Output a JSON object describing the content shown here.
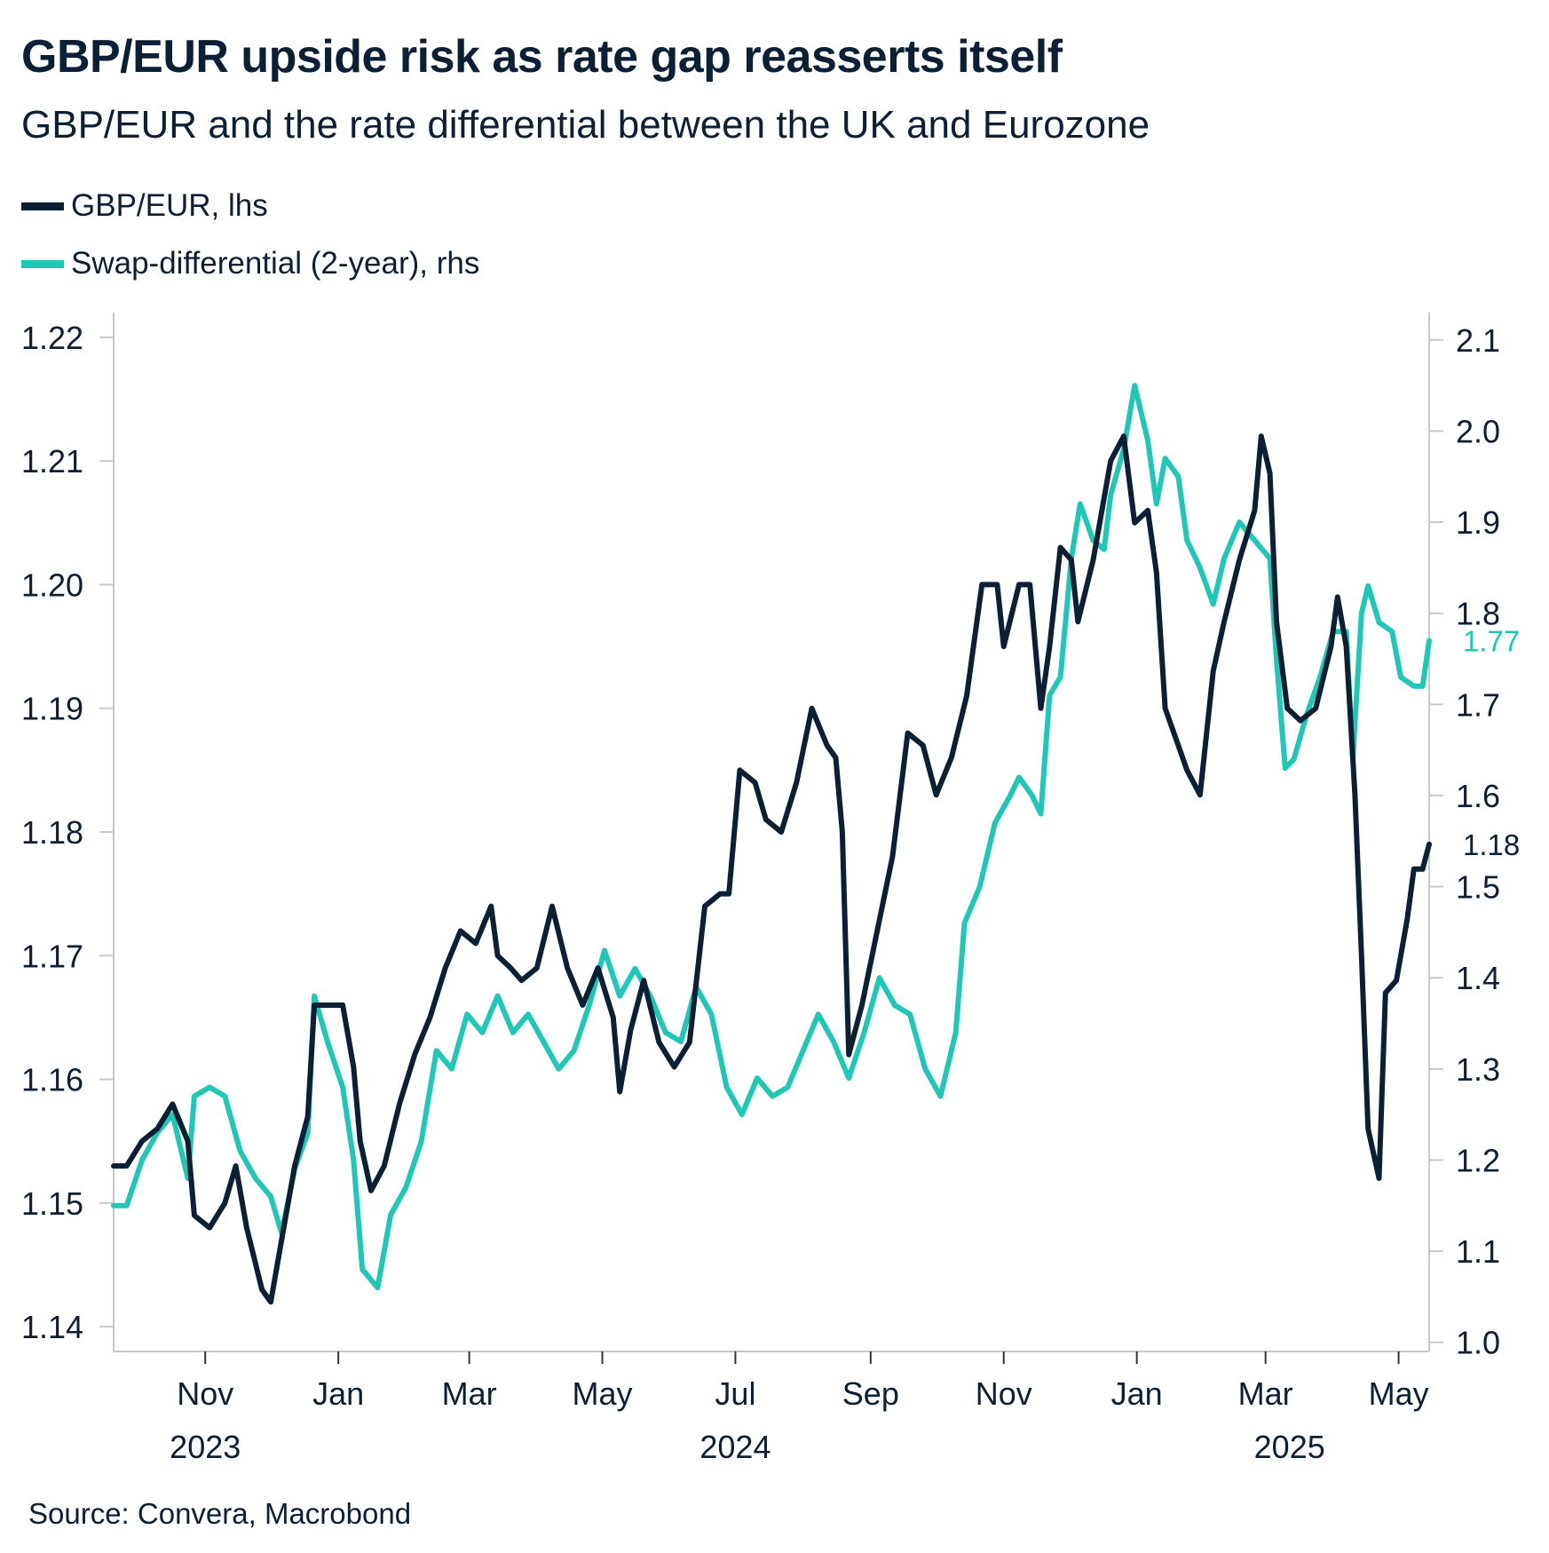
{
  "chart_data": {
    "type": "line",
    "title": "GBP/EUR upside risk as rate gap reasserts itself",
    "subtitle": "GBP/EUR and the rate differential between the UK and Eurozone",
    "source": "Source: Convera, Macrobond",
    "x_range": [
      "2023-09-20",
      "2025-05-15"
    ],
    "x_ticks": [
      {
        "date": "2023-11-01",
        "label": "Nov"
      },
      {
        "date": "2024-01-01",
        "label": "Jan"
      },
      {
        "date": "2024-03-01",
        "label": "Mar"
      },
      {
        "date": "2024-05-01",
        "label": "May"
      },
      {
        "date": "2024-07-01",
        "label": "Jul"
      },
      {
        "date": "2024-09-01",
        "label": "Sep"
      },
      {
        "date": "2024-11-01",
        "label": "Nov"
      },
      {
        "date": "2025-01-01",
        "label": "Jan"
      },
      {
        "date": "2025-03-01",
        "label": "Mar"
      },
      {
        "date": "2025-05-01",
        "label": "May"
      }
    ],
    "year_labels": [
      {
        "date": "2023-11-01",
        "label": "2023"
      },
      {
        "date": "2024-07-01",
        "label": "2024"
      },
      {
        "date": "2025-03-12",
        "label": "2025"
      }
    ],
    "y_left": {
      "min": 1.138,
      "max": 1.222,
      "ticks": [
        "1.14",
        "1.15",
        "1.16",
        "1.17",
        "1.18",
        "1.19",
        "1.20",
        "1.21",
        "1.22"
      ]
    },
    "y_right": {
      "min": 0.99,
      "max": 2.13,
      "ticks": [
        "1.0",
        "1.1",
        "1.2",
        "1.3",
        "1.4",
        "1.5",
        "1.6",
        "1.7",
        "1.8",
        "1.9",
        "2.0",
        "2.1"
      ]
    },
    "series": [
      {
        "name": "GBP/EUR, lhs",
        "axis": "left",
        "color": "#0d1f33",
        "end_label": "1.18",
        "points": [
          [
            "2023-09-20",
            1.153
          ],
          [
            "2023-09-26",
            1.153
          ],
          [
            "2023-10-03",
            1.155
          ],
          [
            "2023-10-10",
            1.156
          ],
          [
            "2023-10-17",
            1.158
          ],
          [
            "2023-10-24",
            1.155
          ],
          [
            "2023-10-27",
            1.149
          ],
          [
            "2023-11-03",
            1.148
          ],
          [
            "2023-11-10",
            1.15
          ],
          [
            "2023-11-15",
            1.153
          ],
          [
            "2023-11-20",
            1.148
          ],
          [
            "2023-11-27",
            1.143
          ],
          [
            "2023-12-01",
            1.142
          ],
          [
            "2023-12-06",
            1.147
          ],
          [
            "2023-12-12",
            1.153
          ],
          [
            "2023-12-18",
            1.157
          ],
          [
            "2023-12-21",
            1.166
          ],
          [
            "2023-12-27",
            1.166
          ],
          [
            "2024-01-03",
            1.166
          ],
          [
            "2024-01-08",
            1.161
          ],
          [
            "2024-01-11",
            1.155
          ],
          [
            "2024-01-16",
            1.151
          ],
          [
            "2024-01-22",
            1.153
          ],
          [
            "2024-01-29",
            1.158
          ],
          [
            "2024-02-05",
            1.162
          ],
          [
            "2024-02-12",
            1.165
          ],
          [
            "2024-02-19",
            1.169
          ],
          [
            "2024-02-26",
            1.172
          ],
          [
            "2024-03-04",
            1.171
          ],
          [
            "2024-03-11",
            1.174
          ],
          [
            "2024-03-14",
            1.17
          ],
          [
            "2024-03-20",
            1.169
          ],
          [
            "2024-03-25",
            1.168
          ],
          [
            "2024-04-01",
            1.169
          ],
          [
            "2024-04-08",
            1.174
          ],
          [
            "2024-04-15",
            1.169
          ],
          [
            "2024-04-22",
            1.166
          ],
          [
            "2024-04-29",
            1.169
          ],
          [
            "2024-05-06",
            1.165
          ],
          [
            "2024-05-09",
            1.159
          ],
          [
            "2024-05-14",
            1.164
          ],
          [
            "2024-05-20",
            1.168
          ],
          [
            "2024-05-27",
            1.163
          ],
          [
            "2024-06-03",
            1.161
          ],
          [
            "2024-06-10",
            1.163
          ],
          [
            "2024-06-17",
            1.174
          ],
          [
            "2024-06-24",
            1.175
          ],
          [
            "2024-06-28",
            1.175
          ],
          [
            "2024-07-03",
            1.185
          ],
          [
            "2024-07-10",
            1.184
          ],
          [
            "2024-07-15",
            1.181
          ],
          [
            "2024-07-22",
            1.18
          ],
          [
            "2024-07-29",
            1.184
          ],
          [
            "2024-08-05",
            1.19
          ],
          [
            "2024-08-12",
            1.187
          ],
          [
            "2024-08-16",
            1.186
          ],
          [
            "2024-08-19",
            1.18
          ],
          [
            "2024-08-22",
            1.162
          ],
          [
            "2024-08-28",
            1.166
          ],
          [
            "2024-09-04",
            1.172
          ],
          [
            "2024-09-11",
            1.178
          ],
          [
            "2024-09-18",
            1.188
          ],
          [
            "2024-09-25",
            1.187
          ],
          [
            "2024-10-01",
            1.183
          ],
          [
            "2024-10-08",
            1.186
          ],
          [
            "2024-10-15",
            1.191
          ],
          [
            "2024-10-22",
            1.2
          ],
          [
            "2024-10-29",
            1.2
          ],
          [
            "2024-11-01",
            1.195
          ],
          [
            "2024-11-08",
            1.2
          ],
          [
            "2024-11-13",
            1.2
          ],
          [
            "2024-11-18",
            1.19
          ],
          [
            "2024-11-22",
            1.195
          ],
          [
            "2024-11-27",
            1.203
          ],
          [
            "2024-12-02",
            1.202
          ],
          [
            "2024-12-05",
            1.197
          ],
          [
            "2024-12-12",
            1.202
          ],
          [
            "2024-12-17",
            1.207
          ],
          [
            "2024-12-20",
            1.21
          ],
          [
            "2024-12-26",
            1.212
          ],
          [
            "2024-12-31",
            1.205
          ],
          [
            "2025-01-06",
            1.206
          ],
          [
            "2025-01-10",
            1.201
          ],
          [
            "2025-01-14",
            1.19
          ],
          [
            "2025-01-20",
            1.187
          ],
          [
            "2025-01-24",
            1.185
          ],
          [
            "2025-01-30",
            1.183
          ],
          [
            "2025-02-05",
            1.193
          ],
          [
            "2025-02-10",
            1.197
          ],
          [
            "2025-02-17",
            1.202
          ],
          [
            "2025-02-24",
            1.206
          ],
          [
            "2025-02-27",
            1.212
          ],
          [
            "2025-03-03",
            1.209
          ],
          [
            "2025-03-06",
            1.197
          ],
          [
            "2025-03-11",
            1.19
          ],
          [
            "2025-03-17",
            1.189
          ],
          [
            "2025-03-24",
            1.19
          ],
          [
            "2025-03-31",
            1.195
          ],
          [
            "2025-04-03",
            1.199
          ],
          [
            "2025-04-07",
            1.195
          ],
          [
            "2025-04-11",
            1.183
          ],
          [
            "2025-04-14",
            1.17
          ],
          [
            "2025-04-17",
            1.156
          ],
          [
            "2025-04-22",
            1.152
          ],
          [
            "2025-04-25",
            1.167
          ],
          [
            "2025-04-30",
            1.168
          ],
          [
            "2025-05-05",
            1.173
          ],
          [
            "2025-05-08",
            1.177
          ],
          [
            "2025-05-12",
            1.177
          ],
          [
            "2025-05-15",
            1.179
          ]
        ]
      },
      {
        "name": "Swap-differential (2-year), rhs",
        "axis": "right",
        "color": "#1ec8b4",
        "end_label": "1.77",
        "points": [
          [
            "2023-09-20",
            1.15
          ],
          [
            "2023-09-26",
            1.15
          ],
          [
            "2023-10-03",
            1.2
          ],
          [
            "2023-10-10",
            1.23
          ],
          [
            "2023-10-17",
            1.25
          ],
          [
            "2023-10-24",
            1.18
          ],
          [
            "2023-10-27",
            1.27
          ],
          [
            "2023-11-03",
            1.28
          ],
          [
            "2023-11-10",
            1.27
          ],
          [
            "2023-11-17",
            1.21
          ],
          [
            "2023-11-24",
            1.18
          ],
          [
            "2023-12-01",
            1.16
          ],
          [
            "2023-12-06",
            1.12
          ],
          [
            "2023-12-12",
            1.19
          ],
          [
            "2023-12-18",
            1.23
          ],
          [
            "2023-12-21",
            1.38
          ],
          [
            "2023-12-27",
            1.33
          ],
          [
            "2024-01-03",
            1.28
          ],
          [
            "2024-01-08",
            1.2
          ],
          [
            "2024-01-12",
            1.08
          ],
          [
            "2024-01-19",
            1.06
          ],
          [
            "2024-01-25",
            1.14
          ],
          [
            "2024-02-01",
            1.17
          ],
          [
            "2024-02-08",
            1.22
          ],
          [
            "2024-02-15",
            1.32
          ],
          [
            "2024-02-22",
            1.3
          ],
          [
            "2024-02-29",
            1.36
          ],
          [
            "2024-03-07",
            1.34
          ],
          [
            "2024-03-14",
            1.38
          ],
          [
            "2024-03-21",
            1.34
          ],
          [
            "2024-03-28",
            1.36
          ],
          [
            "2024-04-04",
            1.33
          ],
          [
            "2024-04-11",
            1.3
          ],
          [
            "2024-04-18",
            1.32
          ],
          [
            "2024-04-25",
            1.37
          ],
          [
            "2024-05-02",
            1.43
          ],
          [
            "2024-05-09",
            1.38
          ],
          [
            "2024-05-16",
            1.41
          ],
          [
            "2024-05-23",
            1.38
          ],
          [
            "2024-05-30",
            1.34
          ],
          [
            "2024-06-06",
            1.33
          ],
          [
            "2024-06-13",
            1.39
          ],
          [
            "2024-06-20",
            1.36
          ],
          [
            "2024-06-27",
            1.28
          ],
          [
            "2024-07-04",
            1.25
          ],
          [
            "2024-07-11",
            1.29
          ],
          [
            "2024-07-18",
            1.27
          ],
          [
            "2024-07-25",
            1.28
          ],
          [
            "2024-08-01",
            1.32
          ],
          [
            "2024-08-08",
            1.36
          ],
          [
            "2024-08-15",
            1.33
          ],
          [
            "2024-08-22",
            1.29
          ],
          [
            "2024-08-29",
            1.34
          ],
          [
            "2024-09-05",
            1.4
          ],
          [
            "2024-09-12",
            1.37
          ],
          [
            "2024-09-19",
            1.36
          ],
          [
            "2024-09-26",
            1.3
          ],
          [
            "2024-10-03",
            1.27
          ],
          [
            "2024-10-10",
            1.34
          ],
          [
            "2024-10-14",
            1.46
          ],
          [
            "2024-10-21",
            1.5
          ],
          [
            "2024-10-28",
            1.57
          ],
          [
            "2024-11-04",
            1.6
          ],
          [
            "2024-11-08",
            1.62
          ],
          [
            "2024-11-14",
            1.6
          ],
          [
            "2024-11-18",
            1.58
          ],
          [
            "2024-11-22",
            1.71
          ],
          [
            "2024-11-27",
            1.73
          ],
          [
            "2024-12-02",
            1.86
          ],
          [
            "2024-12-06",
            1.92
          ],
          [
            "2024-12-12",
            1.88
          ],
          [
            "2024-12-17",
            1.87
          ],
          [
            "2024-12-20",
            1.93
          ],
          [
            "2024-12-26",
            1.98
          ],
          [
            "2024-12-31",
            2.05
          ],
          [
            "2025-01-06",
            1.99
          ],
          [
            "2025-01-10",
            1.92
          ],
          [
            "2025-01-14",
            1.97
          ],
          [
            "2025-01-20",
            1.95
          ],
          [
            "2025-01-24",
            1.88
          ],
          [
            "2025-01-30",
            1.85
          ],
          [
            "2025-02-05",
            1.81
          ],
          [
            "2025-02-10",
            1.86
          ],
          [
            "2025-02-17",
            1.9
          ],
          [
            "2025-02-24",
            1.88
          ],
          [
            "2025-03-03",
            1.86
          ],
          [
            "2025-03-06",
            1.75
          ],
          [
            "2025-03-10",
            1.63
          ],
          [
            "2025-03-14",
            1.64
          ],
          [
            "2025-03-20",
            1.69
          ],
          [
            "2025-03-26",
            1.73
          ],
          [
            "2025-04-01",
            1.78
          ],
          [
            "2025-04-07",
            1.78
          ],
          [
            "2025-04-10",
            1.64
          ],
          [
            "2025-04-14",
            1.8
          ],
          [
            "2025-04-17",
            1.83
          ],
          [
            "2025-04-22",
            1.79
          ],
          [
            "2025-04-28",
            1.78
          ],
          [
            "2025-05-02",
            1.73
          ],
          [
            "2025-05-08",
            1.72
          ],
          [
            "2025-05-12",
            1.72
          ],
          [
            "2025-05-15",
            1.77
          ]
        ]
      }
    ]
  }
}
